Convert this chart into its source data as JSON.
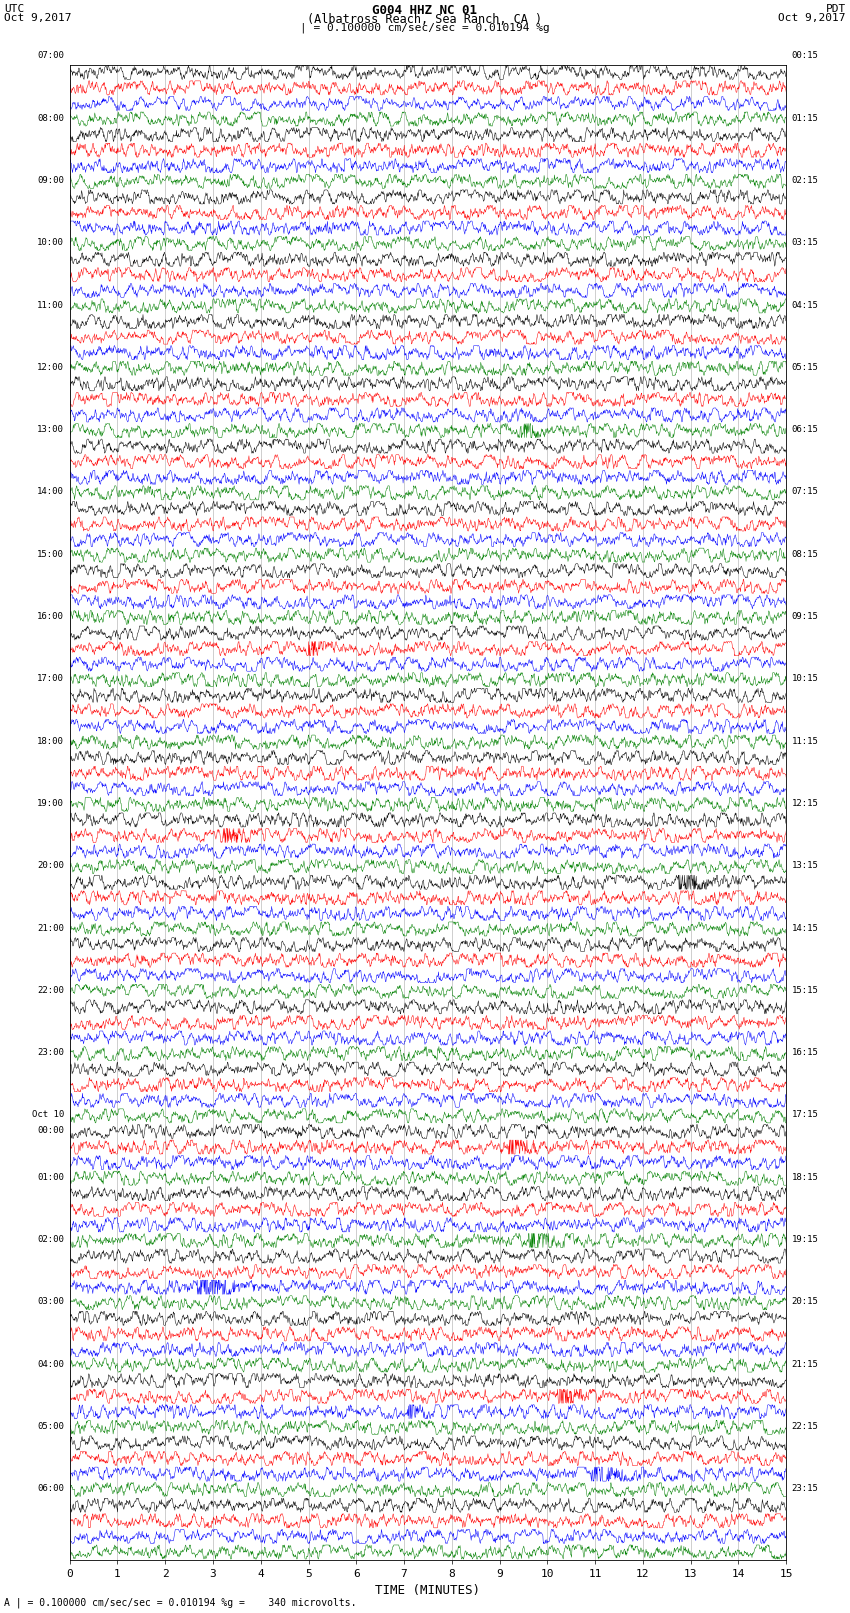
{
  "title_line1": "G004 HHZ NC 01",
  "title_line2": "(Albatross Reach, Sea Ranch, CA )",
  "scale_text": "| = 0.100000 cm/sec/sec = 0.010194 %g",
  "footer_text": "A | = 0.100000 cm/sec/sec = 0.010194 %g =    340 microvolts.",
  "left_label": "UTC",
  "left_date": "Oct 9,2017",
  "right_label": "PDT",
  "right_date": "Oct 9,2017",
  "xlabel": "TIME (MINUTES)",
  "x_ticks": [
    0,
    1,
    2,
    3,
    4,
    5,
    6,
    7,
    8,
    9,
    10,
    11,
    12,
    13,
    14,
    15
  ],
  "time_per_row_minutes": 15,
  "colors": [
    "black",
    "red",
    "blue",
    "green"
  ],
  "background_color": "white",
  "n_rows": 96,
  "n_points": 1800,
  "utc_times_left": [
    "07:00",
    "",
    "",
    "",
    "08:00",
    "",
    "",
    "",
    "09:00",
    "",
    "",
    "",
    "10:00",
    "",
    "",
    "",
    "11:00",
    "",
    "",
    "",
    "12:00",
    "",
    "",
    "",
    "13:00",
    "",
    "",
    "",
    "14:00",
    "",
    "",
    "",
    "15:00",
    "",
    "",
    "",
    "16:00",
    "",
    "",
    "",
    "17:00",
    "",
    "",
    "",
    "18:00",
    "",
    "",
    "",
    "19:00",
    "",
    "",
    "",
    "20:00",
    "",
    "",
    "",
    "21:00",
    "",
    "",
    "",
    "22:00",
    "",
    "",
    "",
    "23:00",
    "",
    "",
    "",
    "Oct 10",
    "00:00",
    "",
    "",
    "01:00",
    "",
    "",
    "",
    "02:00",
    "",
    "",
    "",
    "03:00",
    "",
    "",
    "",
    "04:00",
    "",
    "",
    "",
    "05:00",
    "",
    "",
    "",
    "06:00",
    "",
    "",
    ""
  ],
  "pdt_times_right": [
    "00:15",
    "",
    "",
    "",
    "01:15",
    "",
    "",
    "",
    "02:15",
    "",
    "",
    "",
    "03:15",
    "",
    "",
    "",
    "04:15",
    "",
    "",
    "",
    "05:15",
    "",
    "",
    "",
    "06:15",
    "",
    "",
    "",
    "07:15",
    "",
    "",
    "",
    "08:15",
    "",
    "",
    "",
    "09:15",
    "",
    "",
    "",
    "10:15",
    "",
    "",
    "",
    "11:15",
    "",
    "",
    "",
    "12:15",
    "",
    "",
    "",
    "13:15",
    "",
    "",
    "",
    "14:15",
    "",
    "",
    "",
    "15:15",
    "",
    "",
    "",
    "16:15",
    "",
    "",
    "",
    "17:15",
    "",
    "",
    "",
    "18:15",
    "",
    "",
    "",
    "19:15",
    "",
    "",
    "",
    "20:15",
    "",
    "",
    "",
    "21:15",
    "",
    "",
    "",
    "22:15",
    "",
    "",
    "",
    "23:15",
    "",
    "",
    ""
  ]
}
